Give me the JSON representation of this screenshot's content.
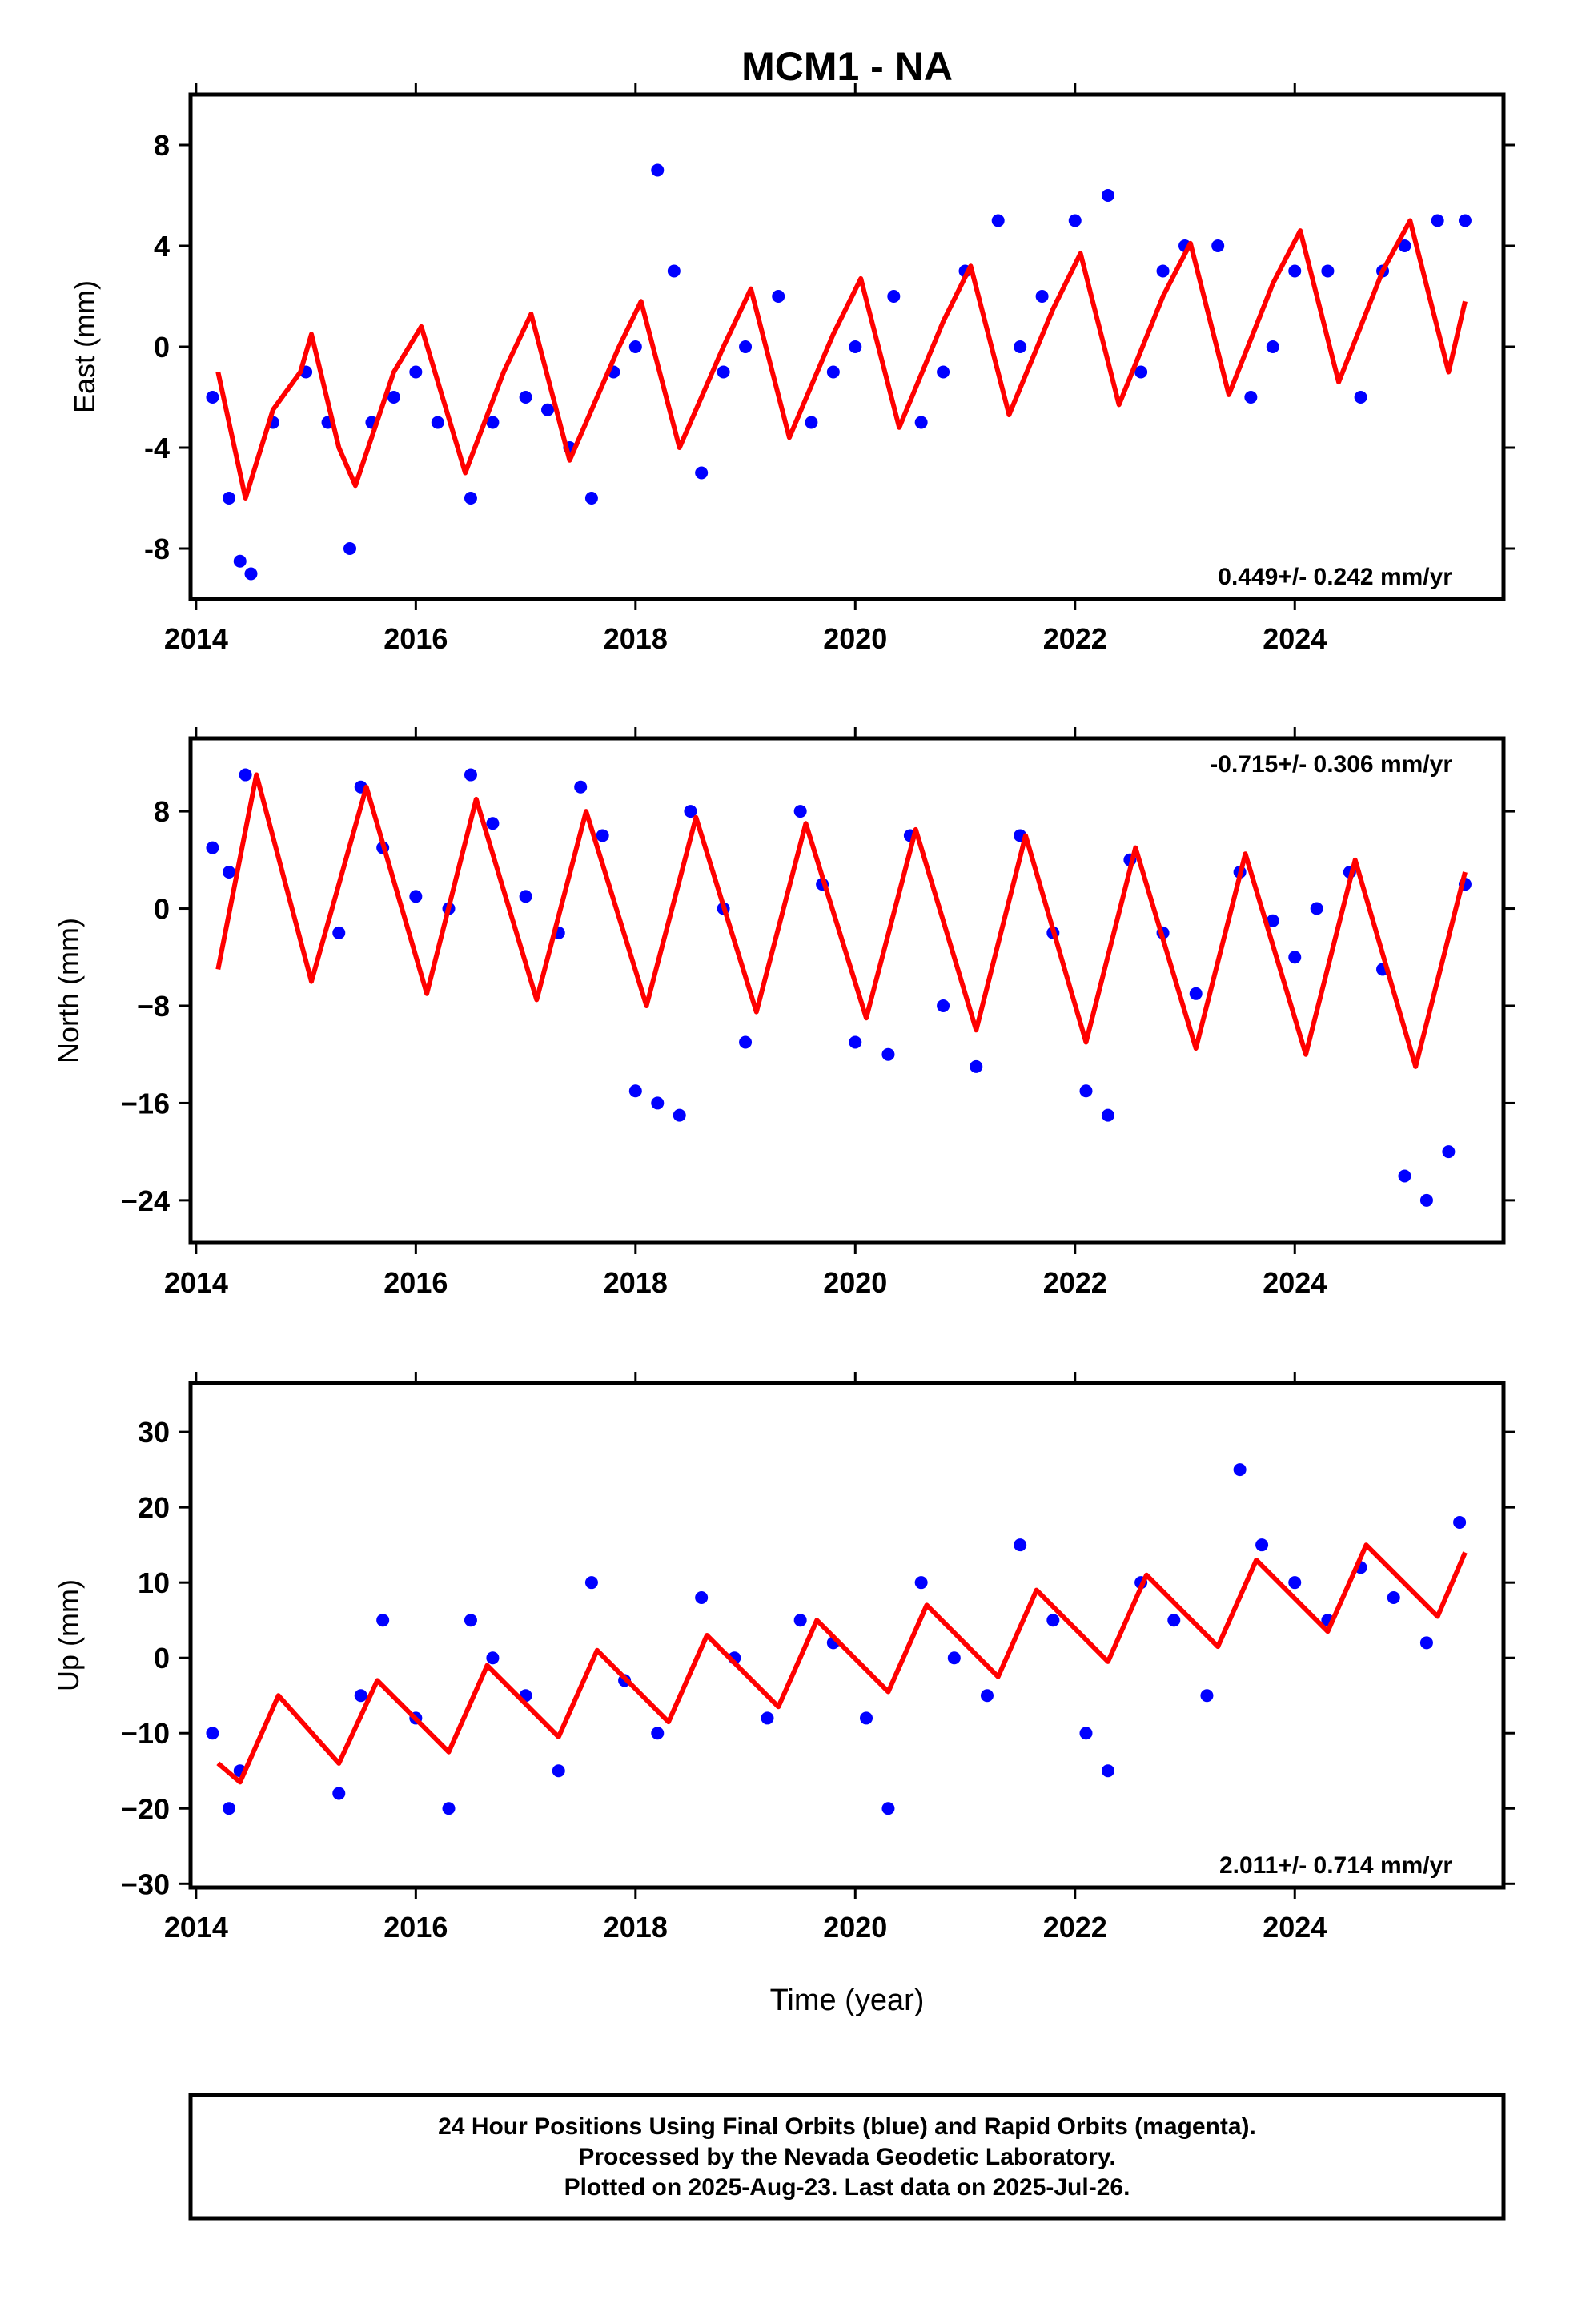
{
  "title": "MCM1 - NA",
  "colors": {
    "points": "#0000ff",
    "fit": "#ff0000",
    "frame": "#000000"
  },
  "xlabel": "Time (year)",
  "xticks": [
    "2014",
    "2016",
    "2018",
    "2020",
    "2022",
    "2024"
  ],
  "chart_data": [
    {
      "type": "scatter",
      "ylabel": "East (mm)",
      "ylim": [
        -10,
        10
      ],
      "xlim": [
        2013.95,
        2025.9
      ],
      "yticks": [
        8,
        4,
        0,
        -4,
        -8
      ],
      "ytick_labels": [
        "8",
        "4",
        "0",
        "-4",
        "-8"
      ],
      "rate_label": "0.449+/- 0.242 mm/yr",
      "rate_position": "bottom-right",
      "series": [
        {
          "kind": "points",
          "x": [
            2014.15,
            2014.3,
            2014.4,
            2014.5,
            2014.7,
            2015.0,
            2015.2,
            2015.4,
            2015.6,
            2015.8,
            2016.0,
            2016.2,
            2016.5,
            2016.7,
            2017.0,
            2017.2,
            2017.4,
            2017.6,
            2017.8,
            2018.0,
            2018.2,
            2018.35,
            2018.6,
            2018.8,
            2019.0,
            2019.3,
            2019.6,
            2019.8,
            2020.0,
            2020.35,
            2020.6,
            2020.8,
            2021.0,
            2021.3,
            2021.5,
            2021.7,
            2022.0,
            2022.3,
            2022.6,
            2022.8,
            2023.0,
            2023.3,
            2023.6,
            2023.8,
            2024.0,
            2024.3,
            2024.6,
            2024.8,
            2025.0,
            2025.3,
            2025.55
          ],
          "y": [
            -2,
            -6,
            -8.5,
            -9,
            -3,
            -1,
            -3,
            -8,
            -3,
            -2,
            -1,
            -3,
            -6,
            -3,
            -2,
            -2.5,
            -4,
            -6,
            -1,
            0,
            7,
            3,
            -5,
            -1,
            0,
            2,
            -3,
            -1,
            0,
            2,
            -3,
            -1,
            3,
            5,
            0,
            2,
            5,
            6,
            -1,
            3,
            4,
            4,
            -2,
            0,
            3,
            3,
            -2,
            3,
            4,
            5,
            5
          ]
        },
        {
          "kind": "fit",
          "x": [
            2014.2,
            2014.45,
            2014.7,
            2014.95,
            2015.05,
            2015.3,
            2015.45,
            2015.8,
            2016.05,
            2016.45,
            2016.8,
            2017.05,
            2017.4,
            2017.85,
            2018.05,
            2018.4,
            2018.8,
            2019.05,
            2019.4,
            2019.8,
            2020.05,
            2020.4,
            2020.8,
            2021.05,
            2021.4,
            2021.8,
            2022.05,
            2022.4,
            2022.8,
            2023.05,
            2023.4,
            2023.8,
            2024.05,
            2024.4,
            2024.8,
            2025.05,
            2025.4,
            2025.55
          ],
          "y": [
            -1,
            -6,
            -2.5,
            -1,
            0.5,
            -4,
            -5.5,
            -1,
            0.8,
            -5,
            -1,
            1.3,
            -4.5,
            0,
            1.8,
            -4,
            0,
            2.3,
            -3.6,
            0.5,
            2.7,
            -3.2,
            1,
            3.2,
            -2.7,
            1.5,
            3.7,
            -2.3,
            2,
            4.1,
            -1.9,
            2.5,
            4.6,
            -1.4,
            3,
            5,
            -1,
            1.8
          ]
        }
      ]
    },
    {
      "type": "scatter",
      "ylabel": "North (mm)",
      "ylim": [
        -27.5,
        14
      ],
      "xlim": [
        2013.95,
        2025.9
      ],
      "yticks": [
        8,
        0,
        -8,
        -16,
        -24
      ],
      "ytick_labels": [
        "8",
        "0",
        "−8",
        "−16",
        "−24"
      ],
      "rate_label": "-0.715+/- 0.306 mm/yr",
      "rate_position": "top-right",
      "series": [
        {
          "kind": "points",
          "x": [
            2014.15,
            2014.3,
            2014.45,
            2015.3,
            2015.5,
            2015.7,
            2016.0,
            2016.3,
            2016.5,
            2016.7,
            2017.0,
            2017.3,
            2017.5,
            2017.7,
            2018.0,
            2018.2,
            2018.4,
            2018.5,
            2018.8,
            2019.0,
            2019.5,
            2019.7,
            2020.0,
            2020.3,
            2020.5,
            2020.8,
            2021.1,
            2021.5,
            2021.8,
            2022.1,
            2022.3,
            2022.5,
            2022.8,
            2023.1,
            2023.5,
            2023.8,
            2024.0,
            2024.2,
            2024.5,
            2024.8,
            2025.0,
            2025.2,
            2025.4,
            2025.55
          ],
          "y": [
            5,
            3,
            11,
            -2,
            10,
            5,
            1,
            0,
            11,
            7,
            1,
            -2,
            10,
            6,
            -15,
            -16,
            -17,
            8,
            0,
            -11,
            8,
            2,
            -11,
            -12,
            6,
            -8,
            -13,
            6,
            -2,
            -15,
            -17,
            4,
            -2,
            -7,
            3,
            -1,
            -4,
            0,
            3,
            -5,
            -22,
            -24,
            -20,
            2
          ]
        },
        {
          "kind": "fit",
          "x": [
            2014.2,
            2014.55,
            2015.05,
            2015.55,
            2016.1,
            2016.55,
            2017.1,
            2017.55,
            2018.1,
            2018.55,
            2019.1,
            2019.55,
            2020.1,
            2020.55,
            2021.1,
            2021.55,
            2022.1,
            2022.55,
            2023.1,
            2023.55,
            2024.1,
            2024.55,
            2025.1,
            2025.55
          ],
          "y": [
            -5,
            11,
            -6,
            10,
            -7,
            9,
            -7.5,
            8,
            -8,
            7.5,
            -8.5,
            7,
            -9,
            6.5,
            -10,
            6,
            -11,
            5,
            -11.5,
            4.5,
            -12,
            4,
            -13,
            3
          ]
        }
      ]
    },
    {
      "type": "scatter",
      "ylabel": "Up (mm)",
      "ylim": [
        -30.5,
        36.5
      ],
      "xlim": [
        2013.95,
        2025.9
      ],
      "yticks": [
        30,
        20,
        10,
        0,
        -10,
        -20,
        -30
      ],
      "ytick_labels": [
        "30",
        "20",
        "10",
        "0",
        "−10",
        "−20",
        "−30"
      ],
      "rate_label": "2.011+/- 0.714 mm/yr",
      "rate_position": "bottom-right",
      "series": [
        {
          "kind": "points",
          "x": [
            2014.15,
            2014.3,
            2014.4,
            2015.3,
            2015.5,
            2015.7,
            2016.0,
            2016.3,
            2016.5,
            2016.7,
            2017.0,
            2017.3,
            2017.6,
            2017.9,
            2018.2,
            2018.6,
            2018.9,
            2019.2,
            2019.5,
            2019.8,
            2020.1,
            2020.3,
            2020.6,
            2020.9,
            2021.2,
            2021.5,
            2021.8,
            2022.1,
            2022.3,
            2022.6,
            2022.9,
            2023.2,
            2023.5,
            2023.7,
            2024.0,
            2024.3,
            2024.6,
            2024.9,
            2025.2,
            2025.5
          ],
          "y": [
            -10,
            -20,
            -15,
            -18,
            -5,
            5,
            -8,
            -20,
            5,
            0,
            -5,
            -15,
            10,
            -3,
            -10,
            8,
            0,
            -8,
            5,
            2,
            -8,
            -20,
            10,
            0,
            -5,
            15,
            5,
            -10,
            -15,
            10,
            5,
            -5,
            25,
            15,
            10,
            5,
            12,
            8,
            2,
            18
          ]
        },
        {
          "kind": "fit",
          "x": [
            2014.2,
            2014.4,
            2014.75,
            2015.3,
            2015.65,
            2016.3,
            2016.65,
            2017.3,
            2017.65,
            2018.3,
            2018.65,
            2019.3,
            2019.65,
            2020.3,
            2020.65,
            2021.3,
            2021.65,
            2022.3,
            2022.65,
            2023.3,
            2023.65,
            2024.3,
            2024.65,
            2025.3,
            2025.55
          ],
          "y": [
            -14,
            -16.5,
            -5,
            -14,
            -3,
            -12.5,
            -1,
            -10.5,
            1,
            -8.5,
            3,
            -6.5,
            5,
            -4.5,
            7,
            -2.5,
            9,
            -0.5,
            11,
            1.5,
            13,
            3.5,
            15,
            5.5,
            14
          ]
        }
      ]
    }
  ],
  "footer": {
    "line1": "24 Hour Positions Using Final Orbits (blue) and Rapid Orbits (magenta).",
    "line2": "Processed by the Nevada Geodetic Laboratory.",
    "line3": "Plotted on 2025-Aug-23. Last data on 2025-Jul-26."
  }
}
